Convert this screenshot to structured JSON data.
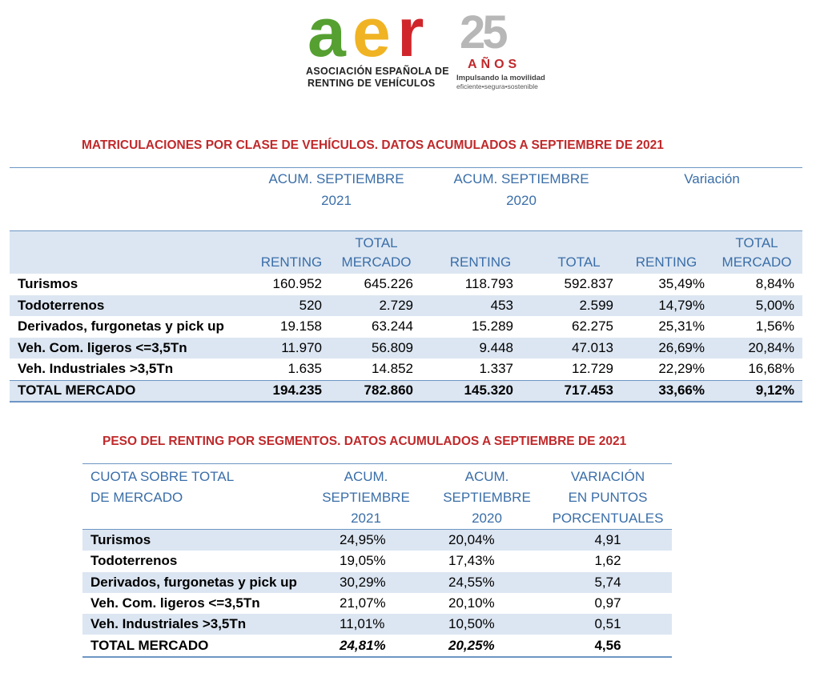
{
  "logo": {
    "letters": [
      "a",
      "e",
      "r"
    ],
    "colors": {
      "a": "#55a031",
      "e": "#f0b323",
      "r": "#d0262b"
    },
    "line1": "ASOCIACIÓN ESPAÑOLA DE",
    "line2": "RENTING DE VEHÍCULOS",
    "anniversary_number": "25",
    "anniversary_word": "AÑOS",
    "slogan": "Impulsando la movilidad",
    "slogan_sub": "eficiente•segura•sostenible"
  },
  "table1": {
    "title": "MATRICULACIONES POR CLASE DE VEHÍCULOS. DATOS ACUMULADOS A SEPTIEMBRE DE 2021",
    "group_headers": [
      {
        "line1": "ACUM. SEPTIEMBRE",
        "line2": "2021"
      },
      {
        "line1": "ACUM. SEPTIEMBRE",
        "line2": "2020"
      },
      {
        "line1": "Variación",
        "line2": ""
      }
    ],
    "col_headers": [
      {
        "line1": "",
        "line2": "RENTING"
      },
      {
        "line1": "TOTAL",
        "line2": "MERCADO"
      },
      {
        "line1": "",
        "line2": "RENTING"
      },
      {
        "line1": "",
        "line2": "TOTAL"
      },
      {
        "line1": "",
        "line2": "RENTING"
      },
      {
        "line1": "TOTAL",
        "line2": "MERCADO"
      }
    ],
    "rows": [
      {
        "label": "Turismos",
        "values": [
          "160.952",
          "645.226",
          "118.793",
          "592.837",
          "35,49%",
          "8,84%"
        ]
      },
      {
        "label": "Todoterrenos",
        "values": [
          "520",
          "2.729",
          "453",
          "2.599",
          "14,79%",
          "5,00%"
        ]
      },
      {
        "label": "Derivados, furgonetas y pick up",
        "values": [
          "19.158",
          "63.244",
          "15.289",
          "62.275",
          "25,31%",
          "1,56%"
        ]
      },
      {
        "label": "Veh. Com. ligeros <=3,5Tn",
        "values": [
          "11.970",
          "56.809",
          "9.448",
          "47.013",
          "26,69%",
          "20,84%"
        ]
      },
      {
        "label": "Veh. Industriales >3,5Tn",
        "values": [
          "1.635",
          "14.852",
          "1.337",
          "12.729",
          "22,29%",
          "16,68%"
        ]
      }
    ],
    "total": {
      "label": "TOTAL MERCADO",
      "values": [
        "194.235",
        "782.860",
        "145.320",
        "717.453",
        "33,66%",
        "9,12%"
      ]
    }
  },
  "table2": {
    "title": "PESO DEL RENTING POR SEGMENTOS. DATOS ACUMULADOS A SEPTIEMBRE DE 2021",
    "col_headers": [
      {
        "line1": "CUOTA SOBRE TOTAL",
        "line2": "DE MERCADO",
        "line3": ""
      },
      {
        "line1": "ACUM.",
        "line2": "SEPTIEMBRE",
        "line3": "2021"
      },
      {
        "line1": "ACUM.",
        "line2": "SEPTIEMBRE",
        "line3": "2020"
      },
      {
        "line1": "VARIACIÓN",
        "line2": "EN PUNTOS",
        "line3": "PORCENTUALES"
      }
    ],
    "rows": [
      {
        "label": "Turismos",
        "values": [
          "24,95%",
          "20,04%",
          "4,91"
        ]
      },
      {
        "label": "Todoterrenos",
        "values": [
          "19,05%",
          "17,43%",
          "1,62"
        ]
      },
      {
        "label": "Derivados, furgonetas y pick up",
        "values": [
          "30,29%",
          "24,55%",
          "5,74"
        ]
      },
      {
        "label": "Veh. Com. ligeros <=3,5Tn",
        "values": [
          "21,07%",
          "20,10%",
          "0,97"
        ]
      },
      {
        "label": "Veh. Industriales >3,5Tn",
        "values": [
          "11,01%",
          "10,50%",
          "0,51"
        ]
      }
    ],
    "total": {
      "label": "TOTAL MERCADO",
      "values": [
        "24,81%",
        "20,25%",
        "4,56"
      ]
    }
  }
}
